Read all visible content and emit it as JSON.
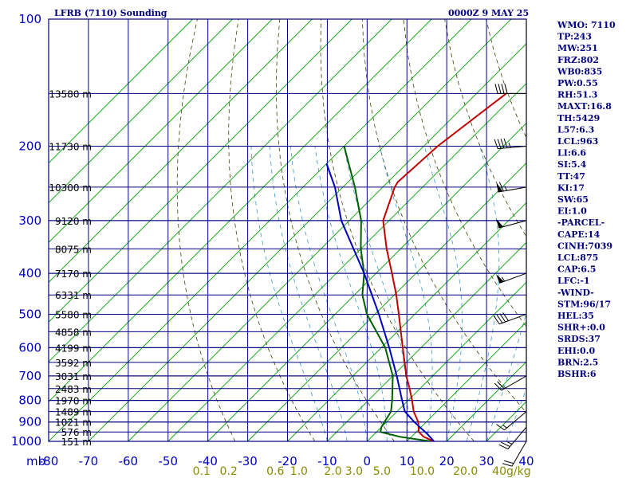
{
  "header": {
    "station_title": "LFRB (7110) Sounding",
    "time_title": "0000Z  9 MAY 25"
  },
  "indices": [
    "WMO: 7110",
    "TP:243",
    "MW:251",
    "FRZ:802",
    "WB0:835",
    "PW:0.55",
    "RH:51.3",
    "MAXT:16.8",
    "TH:5429",
    "L57:6.3",
    "LCL:963",
    "LI:6.6",
    "SI:5.4",
    "TT:47",
    "KI:17",
    "SW:65",
    "EI:1.0",
    "-PARCEL-",
    "CAPE:14",
    "CINH:7039",
    "LCL:875",
    "CAP:6.5",
    "LFC:-1",
    "-WIND-",
    "STM:96/17",
    "HEL:35",
    "SHR+:0.0",
    "SRDS:37",
    "EHI:0.0",
    "BRN:2.5",
    "BSHR:6"
  ],
  "colors": {
    "isobar": "#000080",
    "isotherm": "#000080",
    "skewed_isotherm": "#00a000",
    "dry_adiabat": "#404000",
    "moist_adiabat": "#3399cc",
    "temperature": "#c00000",
    "dewpoint": "#006000",
    "parcel": "#0000c0",
    "mixing_ratio_text": "#8a8a00"
  },
  "chart_data": {
    "type": "line",
    "title": "LFRB (7110) Sounding",
    "subtitle": "0000Z  9 MAY 25",
    "xlabel": "",
    "ylabel": "mb",
    "y_scale": "log",
    "x_ticks": [
      "-80",
      "-70",
      "-60",
      "-50",
      "-40",
      "-30",
      "-20",
      "-10",
      "0",
      "10",
      "20",
      "30",
      "40"
    ],
    "y_ticks": [
      "100",
      "200",
      "300",
      "400",
      "500",
      "600",
      "700",
      "800",
      "900",
      "1000"
    ],
    "xlim": [
      -80,
      40
    ],
    "ylim": [
      1000,
      100
    ],
    "grid": true,
    "height_labels": [
      {
        "p": 150,
        "label": "13580 m"
      },
      {
        "p": 200,
        "label": "11730 m"
      },
      {
        "p": 250,
        "label": "10300 m"
      },
      {
        "p": 300,
        "label": "9120 m"
      },
      {
        "p": 350,
        "label": "8075 m"
      },
      {
        "p": 400,
        "label": "7170 m"
      },
      {
        "p": 450,
        "label": "6331 m"
      },
      {
        "p": 500,
        "label": "5580 m"
      },
      {
        "p": 550,
        "label": "4858 m"
      },
      {
        "p": 600,
        "label": "4199 m"
      },
      {
        "p": 650,
        "label": "3592 m"
      },
      {
        "p": 700,
        "label": "3031 m"
      },
      {
        "p": 750,
        "label": "2483 m"
      },
      {
        "p": 800,
        "label": "1970 m"
      },
      {
        "p": 850,
        "label": "1489 m"
      },
      {
        "p": 900,
        "label": "1021 m"
      },
      {
        "p": 950,
        "label": "576 m"
      },
      {
        "p": 1000,
        "label": "151 m"
      }
    ],
    "mixing_ratio_labels": [
      {
        "w": 0.1,
        "label": "0.1"
      },
      {
        "w": 0.2,
        "label": "0.2"
      },
      {
        "w": 0.6,
        "label": "0.6"
      },
      {
        "w": 1.0,
        "label": "1.0"
      },
      {
        "w": 2.0,
        "label": "2.0"
      },
      {
        "w": 3.0,
        "label": "3.0"
      },
      {
        "w": 5.0,
        "label": "5.0"
      },
      {
        "w": 10.0,
        "label": "10.0"
      },
      {
        "w": 20.0,
        "label": "20.0"
      },
      {
        "w": 40.0,
        "label": "40g/kg"
      }
    ],
    "series": [
      {
        "name": "Temperature",
        "points": [
          {
            "p": 1000,
            "t": 16.8
          },
          {
            "p": 975,
            "t": 13.0
          },
          {
            "p": 950,
            "t": 10.6
          },
          {
            "p": 900,
            "t": 8.0
          },
          {
            "p": 850,
            "t": 4.2
          },
          {
            "p": 800,
            "t": 1.0
          },
          {
            "p": 750,
            "t": -2.6
          },
          {
            "p": 700,
            "t": -6.6
          },
          {
            "p": 600,
            "t": -14.6
          },
          {
            "p": 500,
            "t": -24.0
          },
          {
            "p": 450,
            "t": -29.5
          },
          {
            "p": 400,
            "t": -36.0
          },
          {
            "p": 350,
            "t": -43.5
          },
          {
            "p": 300,
            "t": -51.5
          },
          {
            "p": 250,
            "t": -57.0
          },
          {
            "p": 243,
            "t": -57.5
          },
          {
            "p": 200,
            "t": -56.5
          },
          {
            "p": 150,
            "t": -52.5
          }
        ]
      },
      {
        "name": "Dewpoint",
        "points": [
          {
            "p": 1000,
            "t": 16.0
          },
          {
            "p": 975,
            "t": 7.0
          },
          {
            "p": 950,
            "t": 1.0
          },
          {
            "p": 925,
            "t": 0.0
          },
          {
            "p": 900,
            "t": -0.5
          },
          {
            "p": 850,
            "t": -1.5
          },
          {
            "p": 800,
            "t": -4.0
          },
          {
            "p": 700,
            "t": -10.0
          },
          {
            "p": 600,
            "t": -19.0
          },
          {
            "p": 500,
            "t": -32.0
          },
          {
            "p": 450,
            "t": -38.0
          },
          {
            "p": 400,
            "t": -43.0
          },
          {
            "p": 350,
            "t": -50.0
          },
          {
            "p": 300,
            "t": -57.0
          },
          {
            "p": 250,
            "t": -67.0
          },
          {
            "p": 200,
            "t": -80.0
          }
        ]
      },
      {
        "name": "Parcel",
        "points": [
          {
            "p": 1000,
            "t": 16.8
          },
          {
            "p": 963,
            "t": 13.5
          },
          {
            "p": 900,
            "t": 7.0
          },
          {
            "p": 850,
            "t": 2.0
          },
          {
            "p": 800,
            "t": -1.5
          },
          {
            "p": 700,
            "t": -9.0
          },
          {
            "p": 600,
            "t": -18.0
          },
          {
            "p": 500,
            "t": -29.0
          },
          {
            "p": 400,
            "t": -43.0
          },
          {
            "p": 300,
            "t": -62.0
          },
          {
            "p": 250,
            "t": -72.0
          },
          {
            "p": 220,
            "t": -80.0
          }
        ]
      }
    ],
    "wind_barbs": [
      {
        "p": 150,
        "dir": 270,
        "speed_kt": 40
      },
      {
        "p": 200,
        "dir": 265,
        "speed_kt": 45
      },
      {
        "p": 250,
        "dir": 260,
        "speed_kt": 65
      },
      {
        "p": 300,
        "dir": 255,
        "speed_kt": 50
      },
      {
        "p": 400,
        "dir": 250,
        "speed_kt": 55
      },
      {
        "p": 500,
        "dir": 250,
        "speed_kt": 40
      },
      {
        "p": 700,
        "dir": 240,
        "speed_kt": 20
      },
      {
        "p": 850,
        "dir": 230,
        "speed_kt": 15
      },
      {
        "p": 925,
        "dir": 220,
        "speed_kt": 25
      },
      {
        "p": 1000,
        "dir": 210,
        "speed_kt": 20
      }
    ]
  }
}
